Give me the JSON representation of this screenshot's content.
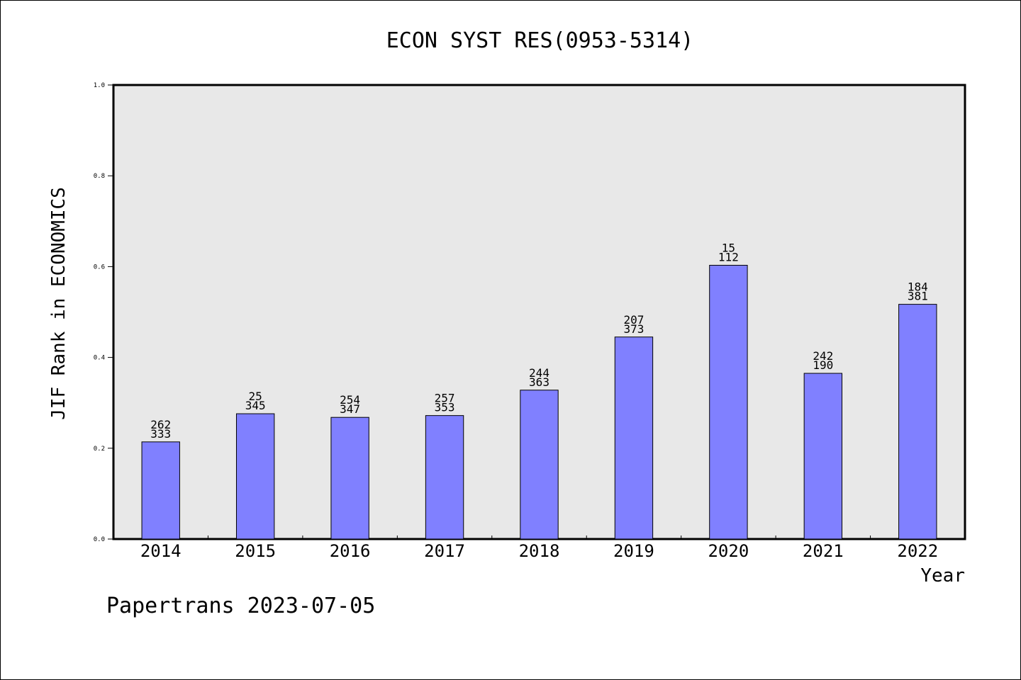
{
  "chart_data": {
    "type": "bar",
    "title": "ECON SYST RES(0953-5314)",
    "xlabel": "Year",
    "ylabel": "JIF Rank in ECONOMICS",
    "footer": "Papertrans 2023-07-05",
    "categories": [
      "2014",
      "2015",
      "2016",
      "2017",
      "2018",
      "2019",
      "2020",
      "2021",
      "2022"
    ],
    "values": [
      0.214,
      0.276,
      0.268,
      0.272,
      0.328,
      0.445,
      0.603,
      0.365,
      0.517
    ],
    "labels_top": [
      "262",
      "25",
      "254",
      "257",
      "244",
      "207",
      "15",
      "242",
      "184"
    ],
    "labels_bottom": [
      "333",
      "345",
      "347",
      "353",
      "363",
      "373",
      "112",
      "190",
      "381"
    ],
    "ylim": [
      0,
      1.0
    ],
    "yticks": [
      "0.0",
      "0.2",
      "0.4",
      "0.6",
      "0.8",
      "1.0"
    ],
    "grid": false,
    "colors": {
      "bar_fill": "#8080ff",
      "bar_stroke": "#000000",
      "plot_background": "#e8e8e8"
    }
  }
}
